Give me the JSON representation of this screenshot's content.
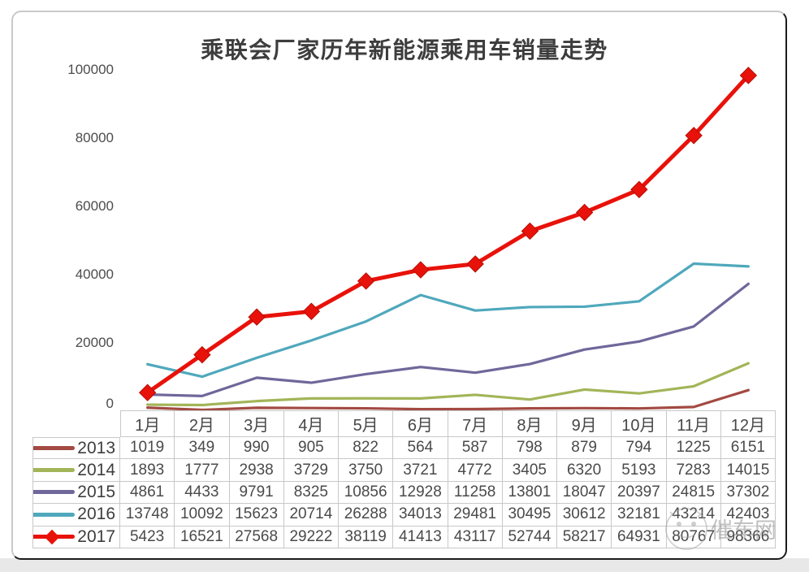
{
  "title": "乘联会厂家历年新能源乘用车销量走势",
  "watermark": {
    "text": "催车网"
  },
  "chart_data": {
    "type": "line",
    "title": "乘联会厂家历年新能源乘用车销量走势",
    "xlabel": "",
    "ylabel": "",
    "ylim": [
      0,
      100000
    ],
    "yticks": [
      0,
      20000,
      40000,
      60000,
      80000,
      100000
    ],
    "grid": false,
    "legend_position": "table-left-column",
    "categories": [
      "1月",
      "2月",
      "3月",
      "4月",
      "5月",
      "6月",
      "7月",
      "8月",
      "9月",
      "10月",
      "11月",
      "12月"
    ],
    "series": [
      {
        "name": "2013",
        "color": "#a34a42",
        "marker": "none",
        "values": [
          1019,
          349,
          990,
          905,
          822,
          564,
          587,
          798,
          879,
          794,
          1225,
          6151
        ]
      },
      {
        "name": "2014",
        "color": "#a2b558",
        "marker": "none",
        "values": [
          1893,
          1777,
          2938,
          3729,
          3750,
          3721,
          4772,
          3405,
          6320,
          5193,
          7283,
          14015
        ]
      },
      {
        "name": "2015",
        "color": "#70679a",
        "marker": "none",
        "values": [
          4861,
          4433,
          9791,
          8325,
          10856,
          12928,
          11258,
          13801,
          18047,
          20397,
          24815,
          37302
        ]
      },
      {
        "name": "2016",
        "color": "#4fa8bc",
        "marker": "none",
        "values": [
          13748,
          10092,
          15623,
          20714,
          26288,
          34013,
          29481,
          30495,
          30612,
          32181,
          43214,
          42403
        ]
      },
      {
        "name": "2017",
        "color": "#e8120a",
        "marker": "diamond",
        "values": [
          5423,
          16521,
          27568,
          29222,
          38119,
          41413,
          43117,
          52744,
          58217,
          64931,
          80767,
          98366
        ]
      }
    ]
  }
}
